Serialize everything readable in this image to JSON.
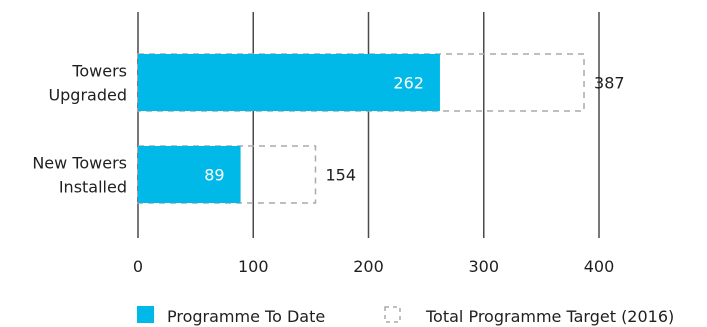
{
  "chart_data": {
    "type": "bar",
    "orientation": "horizontal",
    "categories": [
      [
        "Towers",
        "Upgraded"
      ],
      [
        "New Towers",
        "Installed"
      ]
    ],
    "series": [
      {
        "name": "Programme To Date",
        "values": [
          262,
          89
        ],
        "style": "solid",
        "color": "#00b9e8"
      },
      {
        "name": "Total Programme Target (2016)",
        "values": [
          387,
          154
        ],
        "style": "dashed-outline",
        "color": "#aaaaaa"
      }
    ],
    "x_ticks": [
      "0",
      "100",
      "200",
      "300",
      "400"
    ],
    "xlim": [
      0,
      400
    ],
    "grid": "vertical",
    "legend_position": "bottom"
  }
}
